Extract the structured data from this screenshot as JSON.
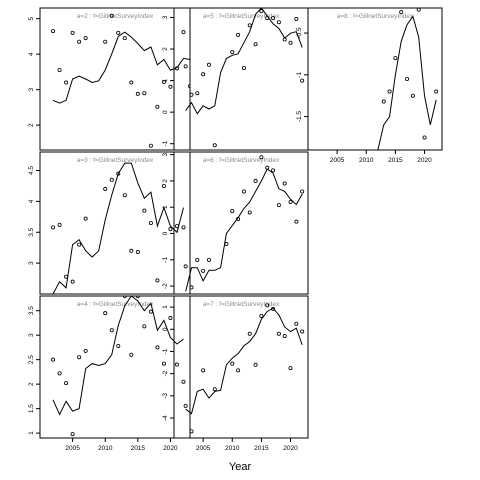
{
  "chart_data": {
    "type": "line",
    "xlabel": "Year",
    "panels": [
      {
        "label": "a=2  :  f=GillnetSurveyIndex",
        "xlim": [
          2000,
          2023
        ],
        "ylim": [
          1.3,
          5.3
        ],
        "yticks": [
          2,
          3,
          4,
          5
        ],
        "xticks": [],
        "show_xticks": false,
        "line": [
          [
            2002,
            2.7
          ],
          [
            2003,
            2.62
          ],
          [
            2004,
            2.7
          ],
          [
            2005,
            3.3
          ],
          [
            2006,
            3.38
          ],
          [
            2007,
            3.3
          ],
          [
            2008,
            3.2
          ],
          [
            2009,
            3.25
          ],
          [
            2010,
            3.55
          ],
          [
            2011,
            4.0
          ],
          [
            2012,
            4.5
          ],
          [
            2013,
            4.62
          ],
          [
            2014,
            4.48
          ],
          [
            2015,
            4.3
          ],
          [
            2016,
            4.1
          ],
          [
            2017,
            4.2
          ],
          [
            2018,
            3.7
          ],
          [
            2019,
            3.85
          ],
          [
            2020,
            3.55
          ],
          [
            2021,
            3.62
          ],
          [
            2022,
            3.88
          ],
          [
            2023,
            3.85
          ]
        ],
        "points": [
          [
            2002,
            4.65
          ],
          [
            2003,
            3.55
          ],
          [
            2004,
            3.2
          ],
          [
            2005,
            4.6
          ],
          [
            2006,
            4.35
          ],
          [
            2007,
            4.45
          ],
          [
            2010,
            4.35
          ],
          [
            2011,
            5.08
          ],
          [
            2012,
            4.6
          ],
          [
            2013,
            4.45
          ],
          [
            2014,
            3.2
          ],
          [
            2015,
            2.88
          ],
          [
            2016,
            2.9
          ],
          [
            2017,
            1.42
          ],
          [
            2018,
            2.52
          ],
          [
            2019,
            3.22
          ],
          [
            2020,
            3.08
          ],
          [
            2021,
            3.6
          ],
          [
            2022,
            4.62
          ],
          [
            2023,
            3.1
          ]
        ]
      },
      {
        "label": "a=5  :  f=GillnetSurveyIndex",
        "xlim": [
          2000,
          2023
        ],
        "ylim": [
          -1.2,
          3.3
        ],
        "yticks": [
          -1,
          0,
          1,
          2,
          3
        ],
        "xticks": [],
        "show_xticks": false,
        "line": [
          [
            2002,
            0.05
          ],
          [
            2003,
            0.3
          ],
          [
            2004,
            -0.05
          ],
          [
            2005,
            0.2
          ],
          [
            2006,
            0.1
          ],
          [
            2007,
            0.2
          ],
          [
            2008,
            1.25
          ],
          [
            2009,
            1.7
          ],
          [
            2010,
            1.8
          ],
          [
            2011,
            1.85
          ],
          [
            2012,
            2.2
          ],
          [
            2013,
            2.55
          ],
          [
            2014,
            3.1
          ],
          [
            2015,
            3.3
          ],
          [
            2016,
            3.05
          ],
          [
            2017,
            2.8
          ],
          [
            2018,
            2.65
          ],
          [
            2019,
            2.35
          ],
          [
            2020,
            2.5
          ],
          [
            2021,
            2.55
          ],
          [
            2022,
            2.05
          ]
        ],
        "points": [
          [
            2002,
            1.45
          ],
          [
            2003,
            0.55
          ],
          [
            2004,
            0.6
          ],
          [
            2005,
            1.2
          ],
          [
            2006,
            1.5
          ],
          [
            2007,
            -1.05
          ],
          [
            2010,
            1.9
          ],
          [
            2011,
            2.45
          ],
          [
            2012,
            1.4
          ],
          [
            2013,
            2.75
          ],
          [
            2014,
            2.15
          ],
          [
            2015,
            3.2
          ],
          [
            2016,
            2.98
          ],
          [
            2017,
            2.98
          ],
          [
            2018,
            2.85
          ],
          [
            2019,
            2.3
          ],
          [
            2020,
            2.2
          ],
          [
            2021,
            2.95
          ],
          [
            2022,
            1.0
          ]
        ]
      },
      {
        "label": "a=8  :  f=GillnetSurveyIndex",
        "xlim": [
          2000,
          2023
        ],
        "ylim": [
          -1.9,
          -0.2
        ],
        "yticks": [
          -0.5,
          -1.0,
          -1.5
        ],
        "xticks": [
          2005,
          2010,
          2015,
          2020
        ],
        "show_xticks": true,
        "line": [
          [
            2012,
            -1.9
          ],
          [
            2013,
            -1.6
          ],
          [
            2014,
            -1.5
          ],
          [
            2015,
            -1.0
          ],
          [
            2016,
            -0.6
          ],
          [
            2017,
            -0.4
          ],
          [
            2018,
            -0.3
          ],
          [
            2019,
            -0.55
          ],
          [
            2020,
            -1.25
          ],
          [
            2021,
            -1.6
          ],
          [
            2022,
            -1.3
          ]
        ],
        "points": [
          [
            2013,
            -1.32
          ],
          [
            2014,
            -1.2
          ],
          [
            2015,
            -0.8
          ],
          [
            2016,
            -0.25
          ],
          [
            2017,
            -1.05
          ],
          [
            2018,
            -1.25
          ],
          [
            2019,
            -0.22
          ],
          [
            2020,
            -1.75
          ],
          [
            2022,
            -1.2
          ]
        ]
      },
      {
        "label": "a=3  :  f=GillnetSurveyIndex",
        "xlim": [
          2000,
          2023
        ],
        "ylim": [
          2.5,
          4.8
        ],
        "yticks": [
          3.0,
          3.5,
          4.0,
          4.5
        ],
        "xticks": [],
        "show_xticks": false,
        "line": [
          [
            2002,
            2.5
          ],
          [
            2003,
            2.7
          ],
          [
            2004,
            2.6
          ],
          [
            2005,
            3.3
          ],
          [
            2006,
            3.38
          ],
          [
            2007,
            3.2
          ],
          [
            2008,
            3.1
          ],
          [
            2009,
            3.2
          ],
          [
            2010,
            3.7
          ],
          [
            2011,
            4.1
          ],
          [
            2012,
            4.45
          ],
          [
            2013,
            4.62
          ],
          [
            2014,
            4.62
          ],
          [
            2015,
            4.3
          ],
          [
            2016,
            4.05
          ],
          [
            2017,
            4.15
          ],
          [
            2018,
            3.6
          ],
          [
            2019,
            3.9
          ],
          [
            2020,
            3.6
          ],
          [
            2021,
            3.5
          ],
          [
            2022,
            3.9
          ]
        ],
        "points": [
          [
            2002,
            3.58
          ],
          [
            2003,
            3.62
          ],
          [
            2004,
            2.78
          ],
          [
            2005,
            2.7
          ],
          [
            2006,
            3.3
          ],
          [
            2007,
            3.72
          ],
          [
            2010,
            4.2
          ],
          [
            2011,
            4.35
          ],
          [
            2012,
            4.45
          ],
          [
            2013,
            4.1
          ],
          [
            2014,
            3.2
          ],
          [
            2015,
            3.18
          ],
          [
            2016,
            3.85
          ],
          [
            2017,
            3.65
          ],
          [
            2018,
            2.72
          ],
          [
            2019,
            4.25
          ],
          [
            2020,
            3.55
          ],
          [
            2021,
            3.6
          ],
          [
            2022,
            3.58
          ]
        ]
      },
      {
        "label": "a=6  :  f=GillnetSurveyIndex",
        "xlim": [
          2000,
          2023
        ],
        "ylim": [
          -2.3,
          3.1
        ],
        "yticks": [
          -2,
          -1,
          0,
          1,
          2,
          3
        ],
        "xticks": [],
        "show_xticks": false,
        "line": [
          [
            2002,
            -2.2
          ],
          [
            2003,
            -1.3
          ],
          [
            2004,
            -1.3
          ],
          [
            2005,
            -1.8
          ],
          [
            2006,
            -1.4
          ],
          [
            2007,
            -1.4
          ],
          [
            2008,
            -1.3
          ],
          [
            2009,
            0.0
          ],
          [
            2010,
            0.3
          ],
          [
            2011,
            0.6
          ],
          [
            2012,
            0.95
          ],
          [
            2013,
            1.2
          ],
          [
            2014,
            1.6
          ],
          [
            2015,
            2.0
          ],
          [
            2016,
            2.45
          ],
          [
            2017,
            2.3
          ],
          [
            2018,
            1.7
          ],
          [
            2019,
            1.6
          ],
          [
            2020,
            1.3
          ],
          [
            2021,
            1.1
          ],
          [
            2022,
            1.5
          ]
        ],
        "points": [
          [
            2002,
            -1.25
          ],
          [
            2003,
            -2.05
          ],
          [
            2004,
            -1.0
          ],
          [
            2005,
            -1.42
          ],
          [
            2006,
            -1.0
          ],
          [
            2009,
            -0.4
          ],
          [
            2010,
            0.85
          ],
          [
            2011,
            0.55
          ],
          [
            2012,
            1.6
          ],
          [
            2013,
            0.8
          ],
          [
            2014,
            2.0
          ],
          [
            2015,
            2.9
          ],
          [
            2016,
            2.5
          ],
          [
            2017,
            2.4
          ],
          [
            2018,
            1.08
          ],
          [
            2019,
            1.9
          ],
          [
            2020,
            1.2
          ],
          [
            2021,
            0.45
          ],
          [
            2022,
            1.6
          ]
        ]
      },
      {
        "label": "a=4  :  f=GillnetSurveyIndex",
        "xlim": [
          2000,
          2023
        ],
        "ylim": [
          0.9,
          3.8
        ],
        "yticks": [
          1.0,
          1.5,
          2.0,
          2.5,
          3.0,
          3.5
        ],
        "xticks": [
          2005,
          2010,
          2015,
          2020
        ],
        "show_xticks": true,
        "line": [
          [
            2002,
            1.68
          ],
          [
            2003,
            1.38
          ],
          [
            2004,
            1.65
          ],
          [
            2005,
            1.45
          ],
          [
            2006,
            1.5
          ],
          [
            2007,
            2.32
          ],
          [
            2008,
            2.42
          ],
          [
            2009,
            2.38
          ],
          [
            2010,
            2.42
          ],
          [
            2011,
            2.6
          ],
          [
            2012,
            3.2
          ],
          [
            2013,
            3.6
          ],
          [
            2014,
            3.8
          ],
          [
            2015,
            3.7
          ],
          [
            2016,
            3.5
          ],
          [
            2017,
            3.65
          ],
          [
            2018,
            3.1
          ],
          [
            2019,
            3.3
          ],
          [
            2020,
            2.95
          ],
          [
            2021,
            2.82
          ],
          [
            2022,
            2.92
          ]
        ],
        "points": [
          [
            2002,
            2.5
          ],
          [
            2003,
            2.22
          ],
          [
            2004,
            2.02
          ],
          [
            2005,
            0.98
          ],
          [
            2006,
            2.55
          ],
          [
            2007,
            2.68
          ],
          [
            2010,
            3.45
          ],
          [
            2011,
            3.1
          ],
          [
            2012,
            2.78
          ],
          [
            2013,
            3.8
          ],
          [
            2014,
            2.6
          ],
          [
            2015,
            3.8
          ],
          [
            2016,
            3.18
          ],
          [
            2017,
            3.48
          ],
          [
            2018,
            2.75
          ],
          [
            2019,
            2.42
          ],
          [
            2020,
            3.35
          ],
          [
            2021,
            2.4
          ],
          [
            2022,
            2.05
          ]
        ]
      },
      {
        "label": "a=7  :  f=GillnetSurveyIndex",
        "xlim": [
          2000,
          2023
        ],
        "ylim": [
          -4.9,
          1.5
        ],
        "yticks": [
          -4,
          -3,
          -2,
          -1,
          0,
          1
        ],
        "xticks": [
          2005,
          2010,
          2015,
          2020
        ],
        "show_xticks": true,
        "line": [
          [
            2002,
            -3.6
          ],
          [
            2003,
            -3.8
          ],
          [
            2004,
            -2.8
          ],
          [
            2005,
            -2.7
          ],
          [
            2006,
            -3.1
          ],
          [
            2007,
            -2.8
          ],
          [
            2008,
            -2.75
          ],
          [
            2009,
            -1.6
          ],
          [
            2010,
            -1.3
          ],
          [
            2011,
            -1.1
          ],
          [
            2012,
            -0.75
          ],
          [
            2013,
            -0.55
          ],
          [
            2014,
            -0.2
          ],
          [
            2015,
            0.45
          ],
          [
            2016,
            0.8
          ],
          [
            2017,
            0.95
          ],
          [
            2018,
            0.65
          ],
          [
            2019,
            0.1
          ],
          [
            2020,
            -0.1
          ],
          [
            2021,
            0.05
          ],
          [
            2022,
            -0.7
          ]
        ],
        "points": [
          [
            2002,
            -3.45
          ],
          [
            2003,
            -4.6
          ],
          [
            2005,
            -1.85
          ],
          [
            2007,
            -2.7
          ],
          [
            2010,
            -1.55
          ],
          [
            2011,
            -1.85
          ],
          [
            2013,
            -0.2
          ],
          [
            2014,
            -1.6
          ],
          [
            2015,
            0.6
          ],
          [
            2016,
            1.08
          ],
          [
            2017,
            0.92
          ],
          [
            2018,
            -0.2
          ],
          [
            2019,
            -0.3
          ],
          [
            2020,
            -1.75
          ],
          [
            2021,
            0.25
          ],
          [
            2022,
            -0.1
          ]
        ]
      }
    ]
  }
}
